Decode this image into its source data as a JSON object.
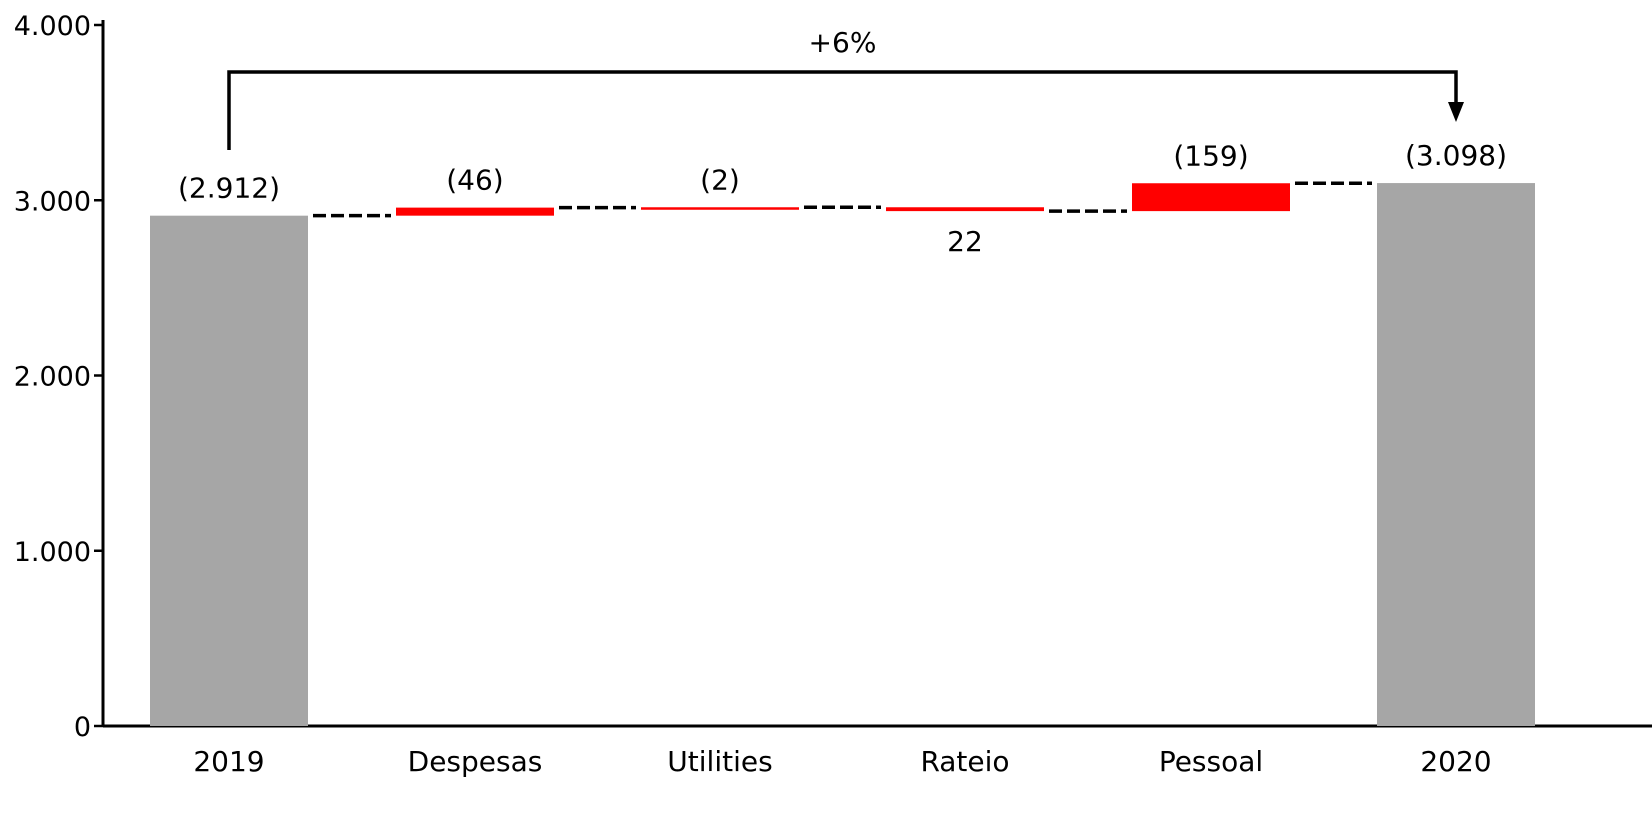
{
  "chart_data": {
    "type": "bar",
    "subtype": "waterfall",
    "categories": [
      "2019",
      "Despesas",
      "Utilities",
      "Rateio",
      "Pessoal",
      "2020"
    ],
    "series": [
      {
        "values": [
          2912,
          46,
          2,
          -22,
          159,
          3098
        ],
        "measure": [
          "total",
          "relative",
          "relative",
          "relative",
          "relative",
          "total"
        ]
      }
    ],
    "data_labels": [
      "(2.912)",
      "(46)",
      "(2)",
      "22",
      "(159)",
      "(3.098)"
    ],
    "yticks": [
      "0",
      "1.000",
      "2.000",
      "3.000",
      "4.000"
    ],
    "ytick_values": [
      0,
      1000,
      2000,
      3000,
      4000
    ],
    "ylim": [
      0,
      4000
    ],
    "grid": false,
    "legend": "none",
    "annotation": {
      "text": "+6%",
      "from": "2019",
      "to": "2020"
    },
    "colors": {
      "total": "#a6a6a6",
      "increase": "#ff0000",
      "decrease": "#ff0000",
      "connector": "#000000",
      "axis": "#000000"
    }
  }
}
